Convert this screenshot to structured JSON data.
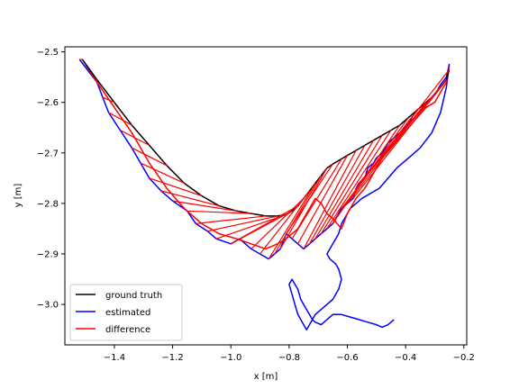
{
  "chart_data": {
    "type": "line",
    "title": "",
    "xlabel": "x [m]",
    "ylabel": "y [m]",
    "xlim": [
      -1.57,
      -0.19
    ],
    "ylim": [
      -3.08,
      -2.49
    ],
    "xticks": [
      -1.4,
      -1.2,
      -1.0,
      -0.8,
      -0.6,
      -0.4,
      -0.2
    ],
    "xtick_labels": [
      "−1.4",
      "−1.2",
      "−1.0",
      "−0.8",
      "−0.6",
      "−0.4",
      "−0.2"
    ],
    "yticks": [
      -2.5,
      -2.6,
      -2.7,
      -2.8,
      -2.9,
      -3.0
    ],
    "ytick_labels": [
      "−2.5",
      "−2.6",
      "−2.7",
      "−2.8",
      "−2.9",
      "−3.0"
    ],
    "grid": false,
    "legend_placement": "lower-left",
    "series": [
      {
        "name": "ground truth",
        "color": "#000000",
        "x": [
          -1.51,
          -1.46,
          -1.4,
          -1.34,
          -1.28,
          -1.22,
          -1.16,
          -1.1,
          -1.04,
          -0.98,
          -0.93,
          -0.88,
          -0.84,
          -0.81,
          -0.79,
          -0.77,
          -0.75,
          -0.73,
          -0.71,
          -0.69,
          -0.67,
          -0.65,
          -0.62,
          -0.6,
          -0.57,
          -0.54,
          -0.51,
          -0.48,
          -0.45,
          -0.42,
          -0.39,
          -0.36,
          -0.33,
          -0.3,
          -0.28,
          -0.26,
          -0.25
        ],
        "y": [
          -2.515,
          -2.555,
          -2.6,
          -2.645,
          -2.685,
          -2.725,
          -2.76,
          -2.785,
          -2.805,
          -2.815,
          -2.82,
          -2.825,
          -2.825,
          -2.822,
          -2.815,
          -2.805,
          -2.79,
          -2.775,
          -2.76,
          -2.745,
          -2.73,
          -2.722,
          -2.712,
          -2.705,
          -2.695,
          -2.685,
          -2.675,
          -2.665,
          -2.655,
          -2.645,
          -2.63,
          -2.615,
          -2.6,
          -2.585,
          -2.57,
          -2.555,
          -2.535
        ]
      },
      {
        "name": "estimated",
        "color": "#0000ff",
        "x": [
          -1.52,
          -1.46,
          -1.44,
          -1.42,
          -1.38,
          -1.34,
          -1.31,
          -1.28,
          -1.24,
          -1.2,
          -1.15,
          -1.12,
          -1.08,
          -1.05,
          -1.0,
          -0.97,
          -0.93,
          -0.9,
          -0.87,
          -0.85,
          -0.83,
          -0.81,
          -0.79,
          -0.77,
          -0.75,
          -0.73,
          -0.71,
          -0.69,
          -0.67,
          -0.65,
          -0.64,
          -0.62,
          -0.6,
          -0.58,
          -0.57,
          -0.56,
          -0.54,
          -0.53,
          -0.51,
          -0.5,
          -0.48,
          -0.47,
          -0.46,
          -0.44,
          -0.42,
          -0.4,
          -0.38,
          -0.36,
          -0.34,
          -0.32,
          -0.3,
          -0.29,
          -0.28,
          -0.26,
          -0.25,
          -0.26,
          -0.28,
          -0.31,
          -0.35,
          -0.39,
          -0.43,
          -0.46,
          -0.49,
          -0.52,
          -0.55,
          -0.57,
          -0.59,
          -0.6,
          -0.61,
          -0.62,
          -0.63,
          -0.64,
          -0.65,
          -0.66,
          -0.67,
          -0.66,
          -0.64,
          -0.63,
          -0.62,
          -0.63,
          -0.65,
          -0.67,
          -0.69,
          -0.71,
          -0.72,
          -0.73,
          -0.74,
          -0.75,
          -0.76,
          -0.77,
          -0.78,
          -0.79,
          -0.8,
          -0.79,
          -0.78,
          -0.77,
          -0.76,
          -0.75,
          -0.74,
          -0.73,
          -0.72,
          -0.71,
          -0.69,
          -0.67,
          -0.65,
          -0.62,
          -0.59,
          -0.56,
          -0.53,
          -0.5,
          -0.48,
          -0.46,
          -0.44
        ],
        "y": [
          -2.515,
          -2.56,
          -2.59,
          -2.62,
          -2.655,
          -2.69,
          -2.72,
          -2.75,
          -2.775,
          -2.795,
          -2.815,
          -2.84,
          -2.855,
          -2.87,
          -2.88,
          -2.87,
          -2.89,
          -2.9,
          -2.91,
          -2.9,
          -2.89,
          -2.86,
          -2.87,
          -2.88,
          -2.89,
          -2.88,
          -2.87,
          -2.86,
          -2.85,
          -2.84,
          -2.83,
          -2.81,
          -2.8,
          -2.79,
          -2.77,
          -2.76,
          -2.75,
          -2.73,
          -2.72,
          -2.71,
          -2.7,
          -2.69,
          -2.68,
          -2.67,
          -2.66,
          -2.65,
          -2.635,
          -2.625,
          -2.61,
          -2.6,
          -2.585,
          -2.575,
          -2.565,
          -2.55,
          -2.525,
          -2.57,
          -2.62,
          -2.66,
          -2.69,
          -2.71,
          -2.73,
          -2.75,
          -2.77,
          -2.78,
          -2.79,
          -2.8,
          -2.81,
          -2.82,
          -2.83,
          -2.84,
          -2.86,
          -2.87,
          -2.88,
          -2.89,
          -2.9,
          -2.91,
          -2.92,
          -2.93,
          -2.95,
          -2.97,
          -2.99,
          -3.0,
          -3.01,
          -3.02,
          -3.03,
          -3.04,
          -3.05,
          -3.04,
          -3.03,
          -3.02,
          -3.0,
          -2.98,
          -2.96,
          -2.95,
          -2.96,
          -2.97,
          -2.99,
          -3.0,
          -3.01,
          -3.02,
          -3.03,
          -3.035,
          -3.04,
          -3.03,
          -3.02,
          -3.02,
          -3.025,
          -3.03,
          -3.035,
          -3.04,
          -3.045,
          -3.04,
          -3.03
        ]
      },
      {
        "name": "difference",
        "color": "#ff0000",
        "x": [
          -1.51,
          -1.46,
          -1.4,
          -1.34,
          -1.28,
          -1.22,
          -1.16,
          -1.1,
          -1.04,
          -0.98,
          -0.93,
          -0.88,
          -0.84,
          -0.81,
          -0.79,
          -0.77,
          -0.75,
          -0.73,
          -0.71,
          -0.69,
          -0.67,
          -0.65,
          -0.62,
          -0.6,
          -0.57,
          -0.54,
          -0.51,
          -0.48,
          -0.45,
          -0.42,
          -0.39,
          -0.36,
          -0.33,
          -0.3,
          -0.28,
          -0.26,
          -0.25
        ],
        "y": [
          -2.515,
          -2.56,
          -2.61,
          -2.66,
          -2.72,
          -2.77,
          -2.81,
          -2.84,
          -2.86,
          -2.87,
          -2.88,
          -2.89,
          -2.88,
          -2.87,
          -2.86,
          -2.85,
          -2.83,
          -2.81,
          -2.79,
          -2.8,
          -2.82,
          -2.83,
          -2.85,
          -2.82,
          -2.79,
          -2.77,
          -2.74,
          -2.71,
          -2.69,
          -2.67,
          -2.65,
          -2.63,
          -2.61,
          -2.6,
          -2.58,
          -2.56,
          -2.53
        ]
      }
    ]
  }
}
